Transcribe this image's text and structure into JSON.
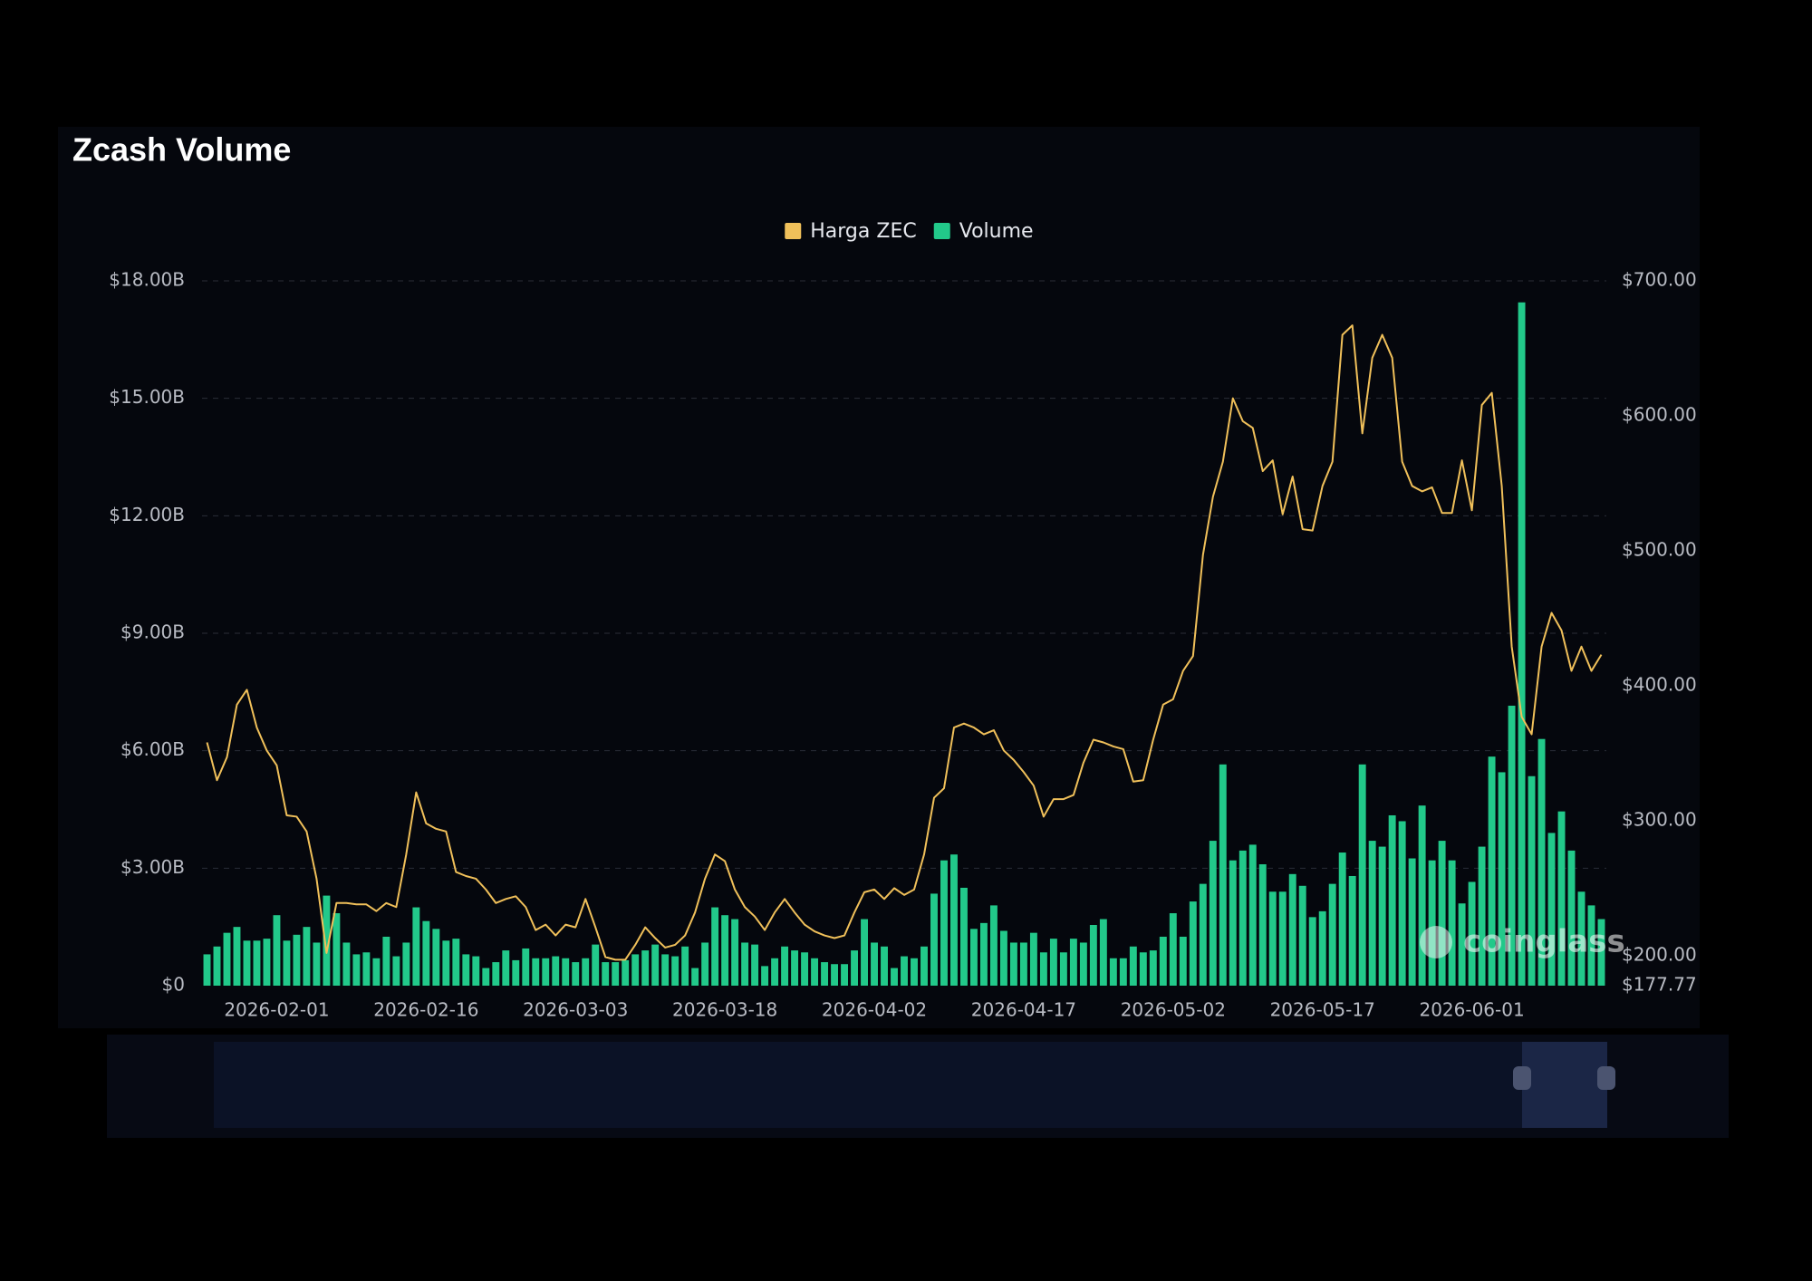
{
  "chart_data": {
    "type": "bar",
    "title": "Zcash Volume",
    "watermark": "coinglass",
    "categories": [
      null,
      null,
      null,
      null,
      null,
      null,
      null,
      "2026-02-01",
      null,
      null,
      null,
      null,
      null,
      null,
      null,
      null,
      null,
      null,
      null,
      null,
      null,
      null,
      "2026-02-16",
      null,
      null,
      null,
      null,
      null,
      null,
      null,
      null,
      null,
      null,
      null,
      null,
      null,
      null,
      "2026-03-03",
      null,
      null,
      null,
      null,
      null,
      null,
      null,
      null,
      null,
      null,
      null,
      null,
      null,
      null,
      "2026-03-18",
      null,
      null,
      null,
      null,
      null,
      null,
      null,
      null,
      null,
      null,
      null,
      null,
      null,
      null,
      "2026-04-02",
      null,
      null,
      null,
      null,
      null,
      null,
      null,
      null,
      null,
      null,
      null,
      null,
      null,
      null,
      "2026-04-17",
      null,
      null,
      null,
      null,
      null,
      null,
      null,
      null,
      null,
      null,
      null,
      null,
      null,
      null,
      "2026-05-02",
      null,
      null,
      null,
      null,
      null,
      null,
      null,
      null,
      null,
      null,
      null,
      null,
      null,
      null,
      "2026-05-17",
      null,
      null,
      null,
      null,
      null,
      null,
      null,
      null,
      null,
      null,
      null,
      null,
      null,
      null,
      "2026-06-01",
      null,
      null,
      null,
      null,
      null,
      null,
      null,
      null,
      null,
      null,
      null,
      null,
      null
    ],
    "series": [
      {
        "name": "Harga ZEC",
        "type": "line",
        "axis": "y2",
        "color": "#f0c05a",
        "values": [
          358,
          330,
          347,
          386,
          397,
          369,
          352,
          341,
          304,
          303,
          292,
          257,
          202,
          239,
          239,
          238,
          238,
          233,
          239,
          236,
          275,
          321,
          298,
          294,
          292,
          262,
          259,
          257,
          249,
          239,
          242,
          244,
          236,
          219,
          223,
          215,
          223,
          221,
          242,
          221,
          199,
          197,
          197,
          208,
          221,
          213,
          206,
          208,
          215,
          232,
          257,
          275,
          270,
          249,
          236,
          229,
          219,
          232,
          242,
          232,
          223,
          218,
          215,
          213,
          215,
          232,
          247,
          249,
          242,
          250,
          245,
          249,
          275,
          317,
          324,
          369,
          372,
          369,
          364,
          367,
          352,
          345,
          336,
          326,
          303,
          316,
          316,
          319,
          343,
          360,
          358,
          355,
          353,
          329,
          330,
          360,
          386,
          390,
          411,
          422,
          497,
          540,
          566,
          613,
          596,
          591,
          559,
          567,
          527,
          555,
          516,
          515,
          548,
          566,
          660,
          667,
          587,
          643,
          660,
          643,
          566,
          548,
          544,
          547,
          528,
          528,
          567,
          530,
          608,
          617,
          548,
          429,
          377,
          364,
          429,
          454,
          441,
          411,
          429,
          411,
          423
        ]
      },
      {
        "name": "Volume",
        "type": "bar",
        "color": "#22c98a",
        "values": [
          0.8,
          1.0,
          1.35,
          1.5,
          1.15,
          1.15,
          1.2,
          1.8,
          1.15,
          1.3,
          1.5,
          1.1,
          2.3,
          1.85,
          1.1,
          0.8,
          0.85,
          0.7,
          1.25,
          0.75,
          1.1,
          2.0,
          1.65,
          1.45,
          1.15,
          1.2,
          0.8,
          0.75,
          0.45,
          0.6,
          0.9,
          0.65,
          0.95,
          0.7,
          0.7,
          0.75,
          0.7,
          0.6,
          0.7,
          1.05,
          0.6,
          0.6,
          0.65,
          0.8,
          0.9,
          1.05,
          0.8,
          0.75,
          1.0,
          0.45,
          1.1,
          2.0,
          1.8,
          1.7,
          1.1,
          1.05,
          0.5,
          0.7,
          1.0,
          0.9,
          0.85,
          0.7,
          0.6,
          0.55,
          0.55,
          0.9,
          1.7,
          1.1,
          1.0,
          0.45,
          0.75,
          0.7,
          1.0,
          2.35,
          3.2,
          3.35,
          2.5,
          1.45,
          1.6,
          2.05,
          1.4,
          1.1,
          1.1,
          1.35,
          0.85,
          1.2,
          0.85,
          1.2,
          1.1,
          1.55,
          1.7,
          0.7,
          0.7,
          1.0,
          0.85,
          0.9,
          1.25,
          1.85,
          1.25,
          2.15,
          2.6,
          3.7,
          5.65,
          3.2,
          3.45,
          3.6,
          3.1,
          2.4,
          2.4,
          2.85,
          2.55,
          1.75,
          1.9,
          2.6,
          3.4,
          2.8,
          5.65,
          3.7,
          3.55,
          4.35,
          4.2,
          3.25,
          4.6,
          3.2,
          3.7,
          3.2,
          2.1,
          2.65,
          3.55,
          5.85,
          5.45,
          7.15,
          17.45,
          5.35,
          6.3,
          3.9,
          4.45,
          3.45,
          2.4,
          2.05,
          1.7
        ]
      }
    ],
    "ylim": [
      0,
      18
    ],
    "yticks": [
      {
        "value": 0,
        "label": "$0"
      },
      {
        "value": 3,
        "label": "$3.00B"
      },
      {
        "value": 6,
        "label": "$6.00B"
      },
      {
        "value": 9,
        "label": "$9.00B"
      },
      {
        "value": 12,
        "label": "$12.00B"
      },
      {
        "value": 15,
        "label": "$15.00B"
      },
      {
        "value": 18,
        "label": "$18.00B"
      }
    ],
    "y2lim": [
      177.77,
      700
    ],
    "y2ticks": [
      {
        "value": 177.77,
        "label": "$177.77"
      },
      {
        "value": 200,
        "label": "$200.00"
      },
      {
        "value": 300,
        "label": "$300.00"
      },
      {
        "value": 400,
        "label": "$400.00"
      },
      {
        "value": 500,
        "label": "$500.00"
      },
      {
        "value": 600,
        "label": "$600.00"
      },
      {
        "value": 700,
        "label": "$700.00"
      }
    ],
    "grid": true,
    "legend": "top"
  }
}
